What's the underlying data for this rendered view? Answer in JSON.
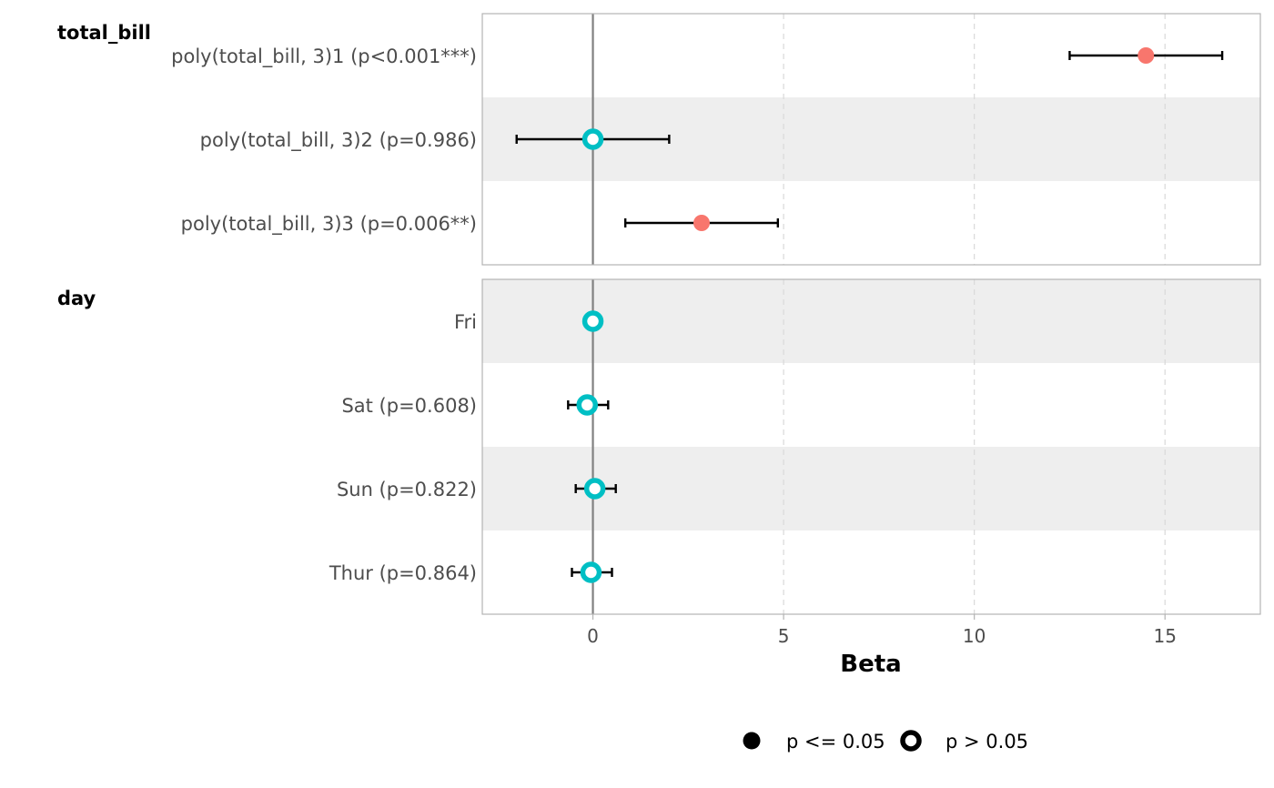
{
  "chart_data": {
    "type": "forest",
    "xlabel": "Beta",
    "xlim": [
      -2.9,
      17.5
    ],
    "xticks": [
      0,
      5,
      10,
      15
    ],
    "xtick_labels": [
      "0",
      "5",
      "10",
      "15"
    ],
    "reference_line": 0,
    "grid": "dashed vertical",
    "colors": {
      "significant": "#F8766D",
      "not_significant": "#00BFC4",
      "error_bar": "#000000",
      "ref_line": "#808080",
      "band": "#eeeeee"
    },
    "groups": [
      {
        "name": "total_bill",
        "rows": [
          {
            "label": "poly(total_bill, 3)1 (p<0.001***)",
            "estimate": 14.5,
            "lower": 12.5,
            "upper": 16.5,
            "significant": true
          },
          {
            "label": "poly(total_bill, 3)2 (p=0.986)",
            "estimate": 0.0,
            "lower": -2.0,
            "upper": 2.0,
            "significant": false
          },
          {
            "label": "poly(total_bill, 3)3 (p=0.006**)",
            "estimate": 2.85,
            "lower": 0.85,
            "upper": 4.85,
            "significant": true
          }
        ]
      },
      {
        "name": "day",
        "rows": [
          {
            "label": "Fri",
            "estimate": 0.0,
            "lower": null,
            "upper": null,
            "significant": false
          },
          {
            "label": "Sat (p=0.608)",
            "estimate": -0.15,
            "lower": -0.65,
            "upper": 0.4,
            "significant": false
          },
          {
            "label": "Sun (p=0.822)",
            "estimate": 0.05,
            "lower": -0.45,
            "upper": 0.6,
            "significant": false
          },
          {
            "label": "Thur (p=0.864)",
            "estimate": -0.05,
            "lower": -0.55,
            "upper": 0.5,
            "significant": false
          }
        ]
      }
    ],
    "legend": {
      "position": "bottom",
      "items": [
        {
          "label": "p <= 0.05",
          "marker": "filled"
        },
        {
          "label": "p > 0.05",
          "marker": "hollow"
        }
      ]
    }
  }
}
